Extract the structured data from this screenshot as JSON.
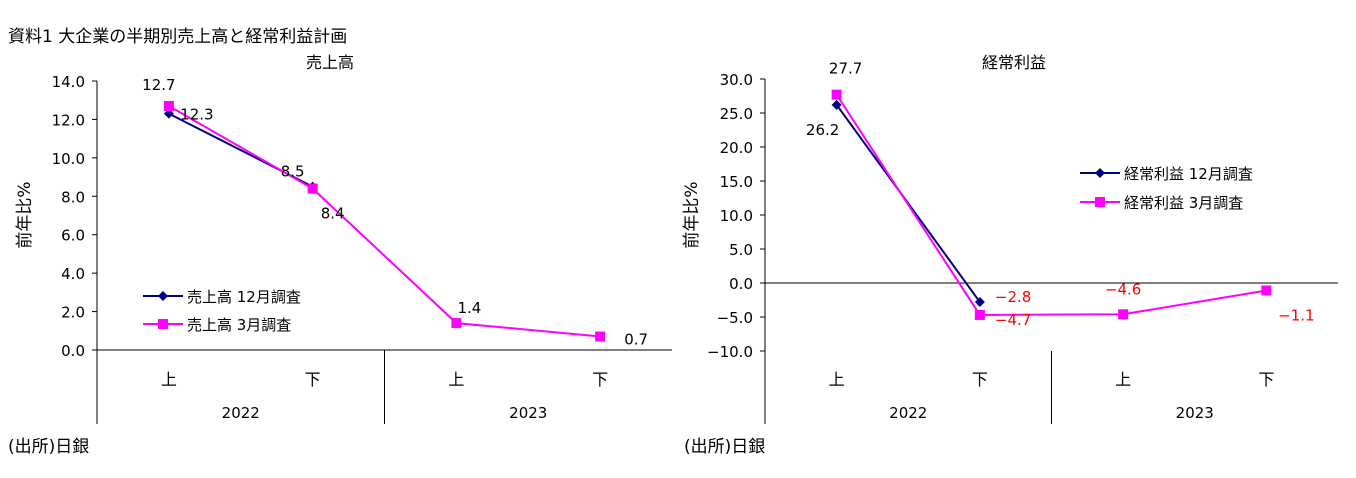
{
  "page_title": "資料1 大企業の半期別売上高と経常利益計画",
  "charts": {
    "left": {
      "source": "(出所)日銀"
    },
    "right": {
      "source": "(出所)日銀"
    }
  },
  "chart_data": [
    {
      "type": "line",
      "title": "売上高",
      "ylabel": "前年比%",
      "ylim": [
        0,
        14
      ],
      "yticks": [
        "14.0",
        "12.0",
        "10.0",
        "8.0",
        "6.0",
        "4.0",
        "2.0",
        "0.0"
      ],
      "categories": [
        "上",
        "下",
        "上",
        "下"
      ],
      "groups": [
        "2022",
        "2023"
      ],
      "legend_position": "left-middle",
      "series": [
        {
          "name": "売上高 12月調査",
          "color": "#000080",
          "marker": "diamond",
          "values": [
            12.3,
            8.5,
            null,
            null
          ],
          "labels": [
            "12.3",
            "8.5"
          ]
        },
        {
          "name": "売上高 3月調査",
          "color": "#ff00ff",
          "marker": "square",
          "values": [
            12.7,
            8.4,
            1.4,
            0.7
          ],
          "labels": [
            "12.7",
            "8.4",
            "1.4",
            "0.7"
          ]
        }
      ]
    },
    {
      "type": "line",
      "title": "経常利益",
      "ylabel": "前年比%",
      "ylim": [
        -10,
        30
      ],
      "yticks": [
        "30.0",
        "25.0",
        "20.0",
        "15.0",
        "10.0",
        "5.0",
        "0.0",
        "−5.0",
        "−10.0"
      ],
      "categories": [
        "上",
        "下",
        "上",
        "下"
      ],
      "groups": [
        "2022",
        "2023"
      ],
      "legend_position": "right-middle",
      "series": [
        {
          "name": "経常利益 12月調査",
          "color": "#000080",
          "marker": "diamond",
          "values": [
            26.2,
            -2.8,
            null,
            null
          ],
          "labels": [
            "26.2",
            "−2.8"
          ]
        },
        {
          "name": "経常利益 3月調査",
          "color": "#ff00ff",
          "marker": "square",
          "values": [
            27.7,
            -4.7,
            -4.6,
            -1.1
          ],
          "labels": [
            "27.7",
            "−4.7",
            "−4.6",
            "−1.1"
          ]
        }
      ],
      "negative_label_color": "#ff0000"
    }
  ]
}
